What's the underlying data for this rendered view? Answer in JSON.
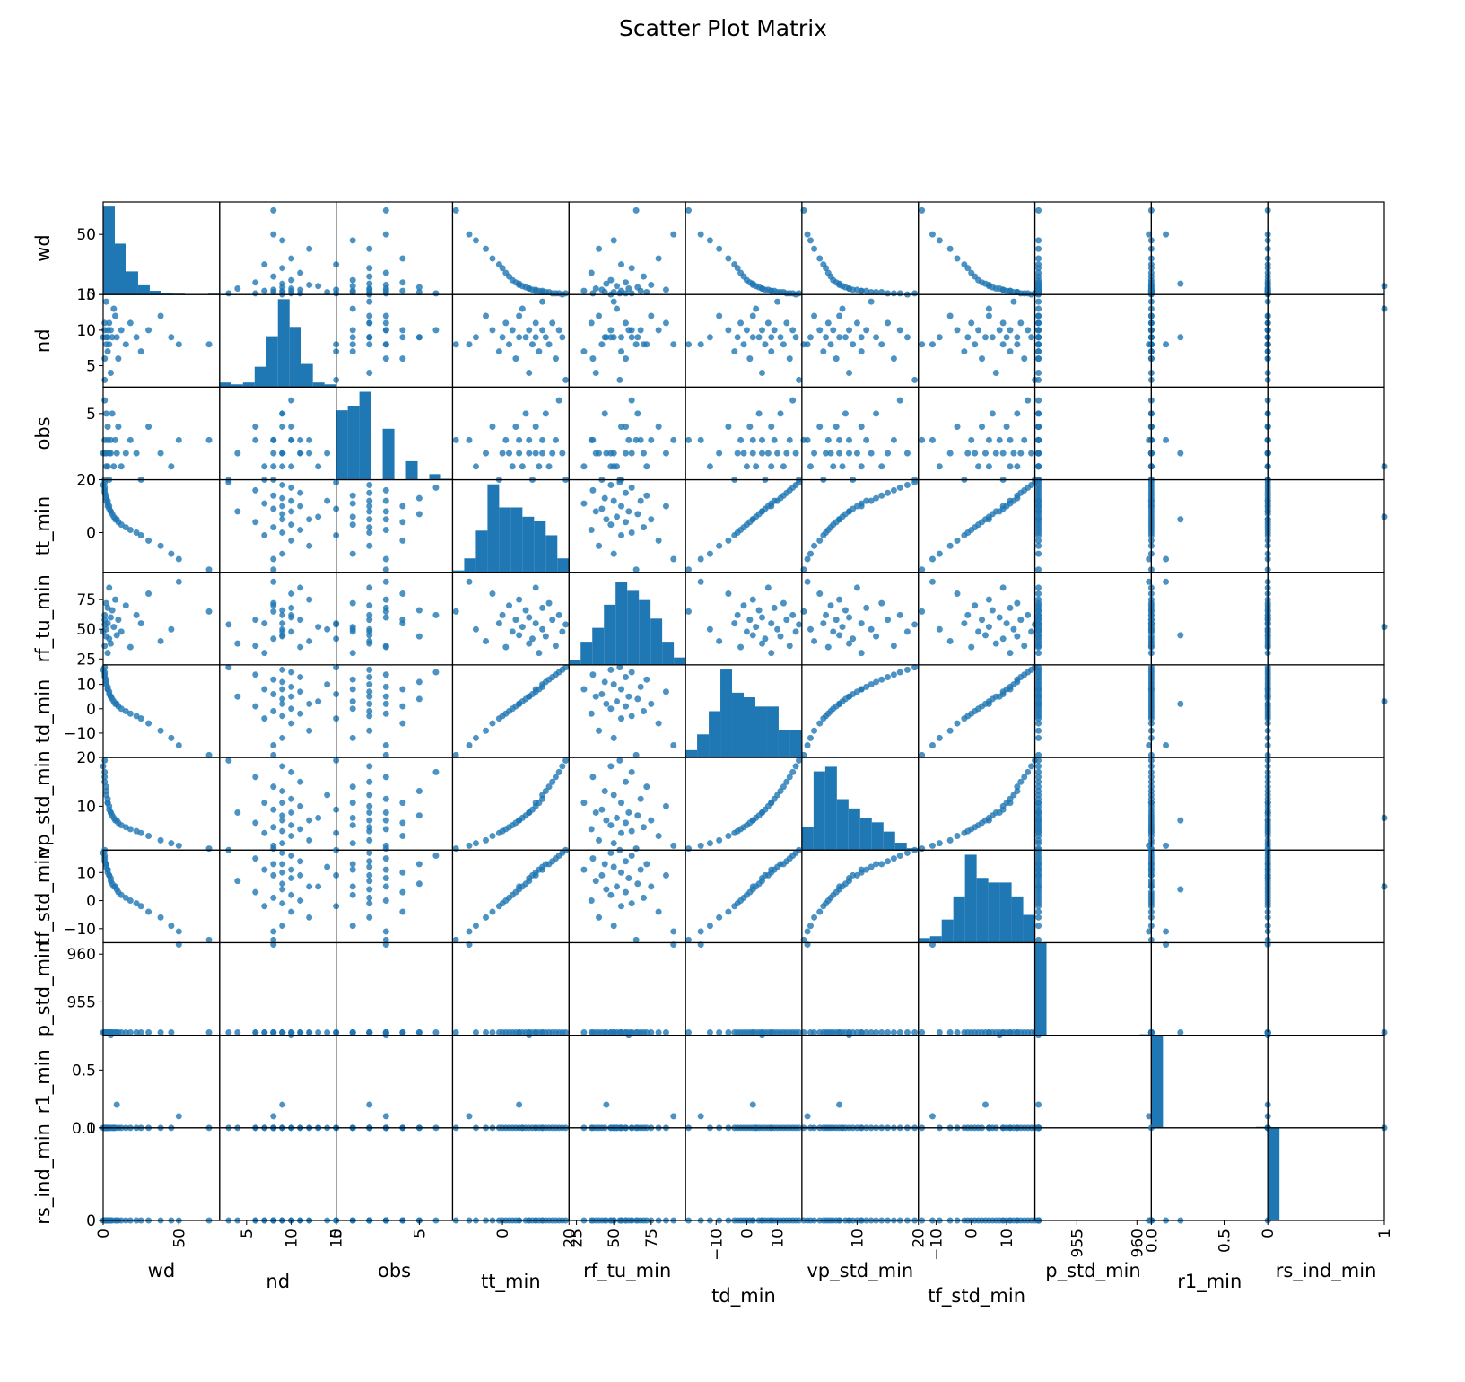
{
  "chart_data": {
    "type": "scatter_matrix",
    "title": "Scatter Plot Matrix",
    "color": "#1f77b4",
    "variables": [
      {
        "name": "wd",
        "lim": [
          0,
          77
        ],
        "ticks": [
          0,
          50
        ],
        "values": [
          70,
          45,
          38,
          30,
          25,
          22,
          18,
          15,
          12,
          10,
          9,
          8,
          7,
          6,
          5,
          5,
          4,
          4,
          3,
          3,
          3,
          2,
          2,
          2,
          1,
          1,
          1,
          0,
          1,
          50
        ],
        "hist": {
          "bins": [
            0,
            7.7,
            15.4,
            23.1,
            30.8,
            38.5,
            46.2,
            53.9,
            61.6,
            69.3,
            77
          ],
          "counts": [
            95,
            55,
            25,
            10,
            4,
            2,
            1,
            0,
            0,
            1
          ],
          "ylim": [
            0,
            100
          ]
        }
      },
      {
        "name": "nd",
        "lim": [
          2,
          15
        ],
        "ticks": [
          5,
          10,
          15
        ],
        "values": [
          8,
          9,
          12,
          10,
          7,
          9,
          11,
          8,
          10,
          6,
          9,
          12,
          13,
          9,
          4,
          10,
          8,
          11,
          9,
          7,
          10,
          14,
          9,
          8,
          11,
          6,
          10,
          9,
          3,
          8
        ],
        "hist": {
          "bins": [
            2,
            3.3,
            4.6,
            5.9,
            7.2,
            8.5,
            9.8,
            11.1,
            12.4,
            13.7,
            15
          ],
          "counts": [
            5,
            3,
            5,
            22,
            55,
            95,
            65,
            25,
            5,
            3
          ],
          "ylim": [
            0,
            100
          ]
        }
      },
      {
        "name": "obs",
        "lim": [
          0,
          7
        ],
        "ticks": [
          0,
          5
        ],
        "values": [
          3,
          1,
          2,
          4,
          0,
          2,
          3,
          2,
          1,
          4,
          2,
          3,
          1,
          5,
          2,
          3,
          0,
          2,
          4,
          1,
          3,
          2,
          5,
          1,
          2,
          3,
          6,
          2,
          0,
          3
        ],
        "hist": {
          "bins": [
            0,
            0.7,
            1.4,
            2.1,
            2.8,
            3.5,
            4.2,
            4.9,
            5.6,
            6.3,
            7
          ],
          "counts": [
            75,
            80,
            95,
            0,
            55,
            0,
            20,
            0,
            6,
            1
          ],
          "ylim": [
            0,
            100
          ]
        }
      },
      {
        "name": "tt_min",
        "lim": [
          -15,
          20
        ],
        "ticks": [
          0,
          20
        ],
        "values": [
          -14,
          -8,
          -5,
          -3,
          -1,
          0,
          1,
          2,
          3,
          4,
          5,
          5,
          6,
          7,
          8,
          8,
          9,
          10,
          10,
          11,
          12,
          12,
          13,
          14,
          15,
          16,
          17,
          18,
          19,
          -10
        ],
        "hist": {
          "bins": [
            -15,
            -11.5,
            -8,
            -4.5,
            -1,
            2.5,
            6,
            9.5,
            13,
            16.5,
            20
          ],
          "counts": [
            2,
            15,
            45,
            95,
            70,
            70,
            60,
            55,
            40,
            15
          ],
          "ylim": [
            0,
            100
          ]
        }
      },
      {
        "name": "rf_tu_min",
        "lim": [
          20,
          98
        ],
        "ticks": [
          25,
          50,
          75
        ],
        "values": [
          65,
          50,
          40,
          80,
          55,
          62,
          35,
          70,
          48,
          58,
          45,
          75,
          52,
          66,
          38,
          60,
          42,
          85,
          55,
          30,
          68,
          50,
          44,
          72,
          58,
          36,
          62,
          48,
          54,
          90
        ],
        "hist": {
          "bins": [
            20,
            27.8,
            35.6,
            43.4,
            51.2,
            59,
            66.8,
            74.6,
            82.4,
            90.2,
            98
          ],
          "counts": [
            5,
            25,
            40,
            65,
            90,
            80,
            70,
            50,
            25,
            8
          ],
          "ylim": [
            0,
            100
          ]
        }
      },
      {
        "name": "td_min",
        "lim": [
          -20,
          18
        ],
        "ticks": [
          {
            "value": -10,
            "label": "−10"
          },
          0,
          10
        ],
        "values": [
          -19,
          -12,
          -9,
          -6,
          -4,
          -3,
          -2,
          -1,
          0,
          1,
          2,
          2,
          3,
          4,
          5,
          5,
          6,
          7,
          8,
          8,
          9,
          10,
          11,
          12,
          13,
          14,
          15,
          16,
          17,
          -15
        ],
        "hist": {
          "bins": [
            -20,
            -16.2,
            -12.4,
            -8.6,
            -4.8,
            -1,
            2.8,
            6.6,
            10.4,
            14.2,
            18
          ],
          "counts": [
            8,
            25,
            50,
            95,
            70,
            65,
            55,
            55,
            30,
            30
          ],
          "ylim": [
            0,
            100
          ]
        }
      },
      {
        "name": "vp_std_min",
        "lim": [
          1,
          20
        ],
        "ticks": [
          10,
          20
        ],
        "values": [
          1.3,
          2.4,
          3.0,
          3.9,
          4.5,
          4.9,
          5.3,
          5.7,
          6.1,
          6.6,
          7.1,
          7.1,
          7.6,
          8.1,
          8.7,
          8.7,
          9.3,
          10.0,
          10.7,
          10.7,
          11.5,
          12.3,
          13.1,
          14.0,
          15.0,
          16.0,
          17.0,
          18.2,
          19.4,
          1.9
        ],
        "hist": {
          "bins": [
            1,
            2.9,
            4.8,
            6.7,
            8.6,
            10.5,
            12.4,
            14.3,
            16.2,
            18.1,
            20
          ],
          "counts": [
            25,
            85,
            90,
            55,
            45,
            35,
            30,
            20,
            8,
            2
          ],
          "ylim": [
            0,
            100
          ]
        }
      },
      {
        "name": "tf_std_min",
        "lim": [
          -15,
          18
        ],
        "ticks": [
          {
            "value": -10,
            "label": "−10"
          },
          0,
          10
        ],
        "values": [
          -14,
          -9,
          -6,
          -4,
          -2,
          -1,
          0,
          1,
          2,
          3,
          4,
          5,
          5,
          6,
          7,
          8,
          9,
          9,
          10,
          11,
          11,
          12,
          13,
          13,
          14,
          15,
          16,
          17,
          18,
          -11
        ],
        "hist": {
          "bins": [
            -15,
            -11.7,
            -8.4,
            -5.1,
            -1.8,
            1.5,
            4.8,
            8.1,
            11.4,
            14.7,
            18
          ],
          "counts": [
            5,
            7,
            25,
            50,
            95,
            70,
            65,
            65,
            50,
            30
          ],
          "ylim": [
            0,
            100
          ]
        }
      },
      {
        "name": "p_std_min",
        "lim": [
          951.5,
          961.2
        ],
        "ticks": [
          955,
          960
        ],
        "values": [
          951.8,
          951.8,
          951.8,
          951.8,
          951.8,
          951.8,
          951.8,
          951.8,
          951.8,
          951.8,
          951.8,
          951.8,
          951.8,
          951.8,
          951.8,
          951.8,
          951.8,
          951.8,
          951.8,
          951.8,
          951.8,
          951.8,
          951.8,
          951.8,
          951.8,
          951.8,
          951.8,
          951.8,
          951.8,
          961
        ],
        "hist": {
          "bins": [
            951.5,
            952.47,
            953.44,
            954.41,
            955.38,
            956.35,
            957.32,
            958.29,
            959.26,
            960.23,
            961.2
          ],
          "counts": [
            100,
            0,
            0,
            0,
            0,
            0,
            0,
            0,
            0,
            1
          ],
          "ylim": [
            0,
            100
          ]
        }
      },
      {
        "name": "r1_min",
        "lim": [
          0,
          0.8
        ],
        "ticks": [
          {
            "value": 0,
            "label": "0.0"
          },
          {
            "value": 0.5,
            "label": "0.5"
          }
        ],
        "values": [
          0,
          0,
          0,
          0,
          0,
          0,
          0,
          0,
          0,
          0,
          0.2,
          0,
          0,
          0,
          0,
          0.8,
          0,
          0,
          0,
          0,
          0,
          0,
          0,
          0,
          0,
          0,
          0,
          0,
          0,
          0.1
        ],
        "hist": {
          "bins": [
            0,
            0.08,
            0.16,
            0.24,
            0.32,
            0.4,
            0.48,
            0.56,
            0.64,
            0.72,
            0.8
          ],
          "counts": [
            100,
            0,
            0,
            0,
            0,
            0,
            0,
            0,
            0,
            1
          ],
          "ylim": [
            0,
            100
          ]
        }
      },
      {
        "name": "rs_ind_min",
        "lim": [
          0,
          1
        ],
        "ticks": [
          0,
          1
        ],
        "values": [
          0,
          0,
          0,
          0,
          0,
          0,
          0,
          0,
          0,
          0,
          0,
          0,
          1,
          0,
          0,
          0,
          0,
          0,
          0,
          0,
          0,
          0,
          0,
          0,
          0,
          0,
          0,
          0,
          0,
          0
        ],
        "hist": {
          "bins": [
            0,
            0.1,
            0.2,
            0.3,
            0.4,
            0.5,
            0.6,
            0.7,
            0.8,
            0.9,
            1
          ],
          "counts": [
            100,
            0,
            0,
            0,
            0,
            0,
            0,
            0,
            0,
            1
          ],
          "ylim": [
            0,
            100
          ]
        }
      }
    ]
  }
}
